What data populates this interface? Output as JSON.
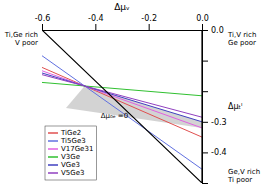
{
  "chart_data": {
    "type": "line",
    "x_label": "Δμᵥ",
    "y_label": "Δμₜᴵ",
    "annotations": [
      {
        "text": "Ti,Ge rich\nV poor"
      },
      {
        "text": "Ti,V rich\nGe poor"
      },
      {
        "text": "Ge,V rich\nTi poor"
      },
      {
        "text": "Δμ₀ₑ =0",
        "x": -0.38,
        "y": -0.28
      }
    ],
    "xlim": [
      -0.6,
      0.0
    ],
    "ylim": [
      -0.5,
      0.0
    ],
    "xticks": [
      -0.6,
      -0.4,
      -0.2,
      {
        "value": 0.0,
        "label": "0.0"
      }
    ],
    "yticks": [
      {
        "value": 0.0,
        "label": "0.0"
      },
      {
        "value": -0.1,
        "label": ""
      },
      {
        "value": -0.2,
        "label": ""
      },
      -0.3,
      -0.4,
      {
        "value": -0.5,
        "label": ""
      }
    ],
    "grid": false,
    "legend": "lower left",
    "series": [
      {
        "type": "line",
        "color": "#000000",
        "x": [
          -0.6,
          0.0,
          0.0,
          -0.6
        ],
        "values": [
          0.0,
          0.0,
          -0.5,
          0.0
        ]
      },
      {
        "type": "polygon",
        "color": "#c8c8c8",
        "x": [
          -0.44,
          -0.51,
          0.0,
          0.0
        ],
        "values": [
          -0.183,
          -0.255,
          -0.32,
          -0.3
        ]
      },
      {
        "type": "line",
        "name": "TiGe2",
        "color": "#e05050",
        "x": [
          -0.6,
          0.0
        ],
        "values": [
          -0.1222727273,
          -0.35
        ]
      },
      {
        "type": "line",
        "name": "Ti5Ge3",
        "color": "#6070e0",
        "x": [
          -0.6,
          0.0
        ],
        "values": [
          -0.0840909091,
          -0.455
        ]
      },
      {
        "type": "line",
        "name": "V17Ge31",
        "color": "#e060e0",
        "x": [
          -0.6,
          0.0
        ],
        "values": [
          -0.1331818182,
          -0.32
        ]
      },
      {
        "type": "line",
        "name": "V3Ge",
        "color": "#30c030",
        "x": [
          -0.6,
          0.0
        ],
        "values": [
          -0.1713636364,
          -0.215
        ]
      },
      {
        "type": "line",
        "name": "VGe3",
        "color": "#4040c0",
        "x": [
          -0.6,
          0.0
        ],
        "values": [
          -0.1404545455,
          -0.3
        ]
      },
      {
        "type": "line",
        "name": "V5Ge3",
        "color": "#9040c0",
        "x": [
          -0.6,
          0.0
        ],
        "values": [
          -0.1459090909,
          -0.285
        ]
      }
    ]
  }
}
